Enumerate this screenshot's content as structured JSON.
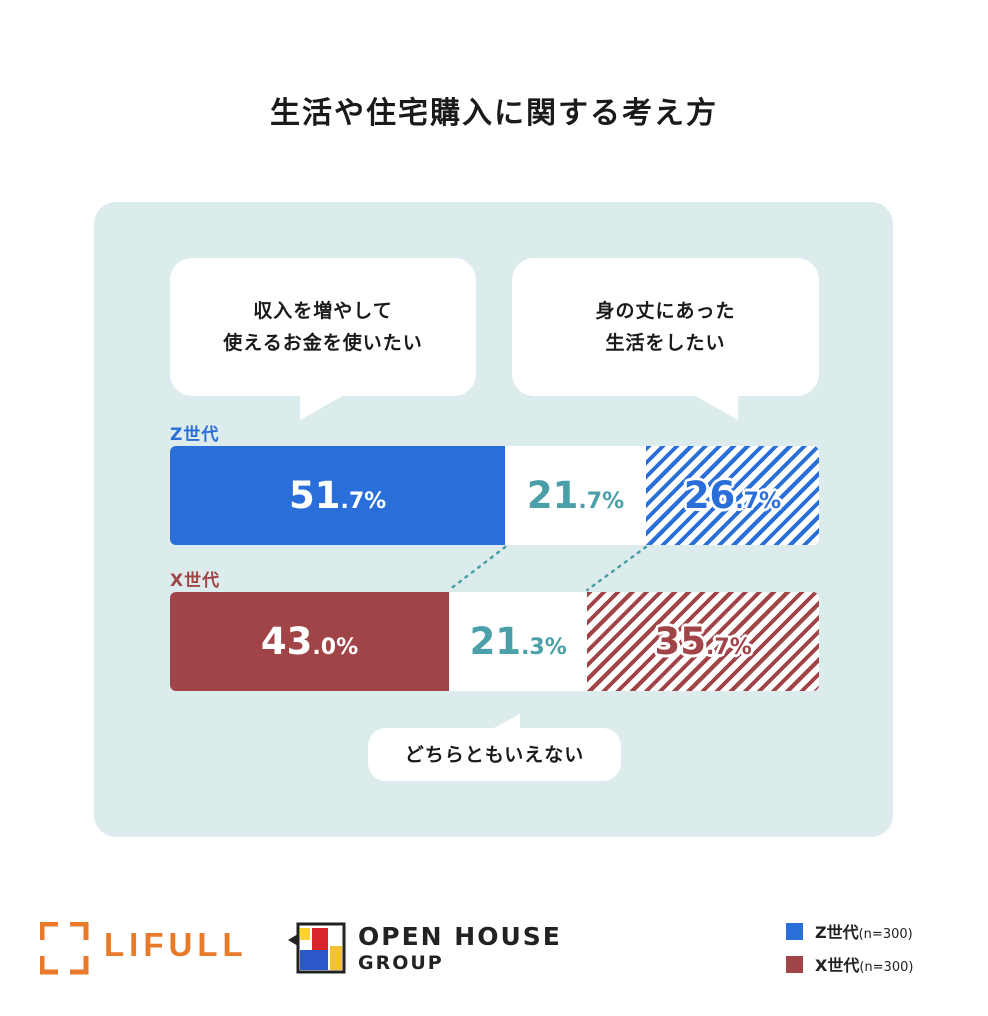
{
  "title": "生活や住宅購入に関する考え方",
  "bubbles": {
    "left": "収入を増やして\n使えるお金を使いたい",
    "right": "身の丈にあった\n生活をしたい",
    "bottom": "どちらともいえない"
  },
  "colors": {
    "z": "#2a6fd9",
    "x": "#a04447",
    "middle_text": "#4a9fa8",
    "panel": "#dcebec",
    "lifull": "#e87a2a"
  },
  "chart_data": {
    "type": "bar",
    "stacked": true,
    "orientation": "horizontal",
    "categories": [
      "Z世代",
      "X世代"
    ],
    "series": [
      {
        "name": "収入を増やして使えるお金を使いたい",
        "values": [
          51.7,
          43.0
        ]
      },
      {
        "name": "どちらともいえない",
        "values": [
          21.7,
          21.3
        ]
      },
      {
        "name": "身の丈にあった生活をしたい",
        "values": [
          26.7,
          35.7
        ]
      }
    ],
    "unit": "%",
    "labels": {
      "z": [
        [
          "51",
          ".7%"
        ],
        [
          "21",
          ".7%"
        ],
        [
          "26",
          ".7%"
        ]
      ],
      "x": [
        [
          "43",
          ".0%"
        ],
        [
          "21",
          ".3%"
        ],
        [
          "35",
          ".7%"
        ]
      ]
    }
  },
  "legend": [
    {
      "label": "Z世代",
      "n": "(n=300)",
      "color": "#2a6fd9"
    },
    {
      "label": "X世代",
      "n": "(n=300)",
      "color": "#a04447"
    }
  ],
  "logos": {
    "lifull": "LIFULL",
    "openhouse_line1": "OPEN HOUSE",
    "openhouse_line2": "GROUP"
  }
}
